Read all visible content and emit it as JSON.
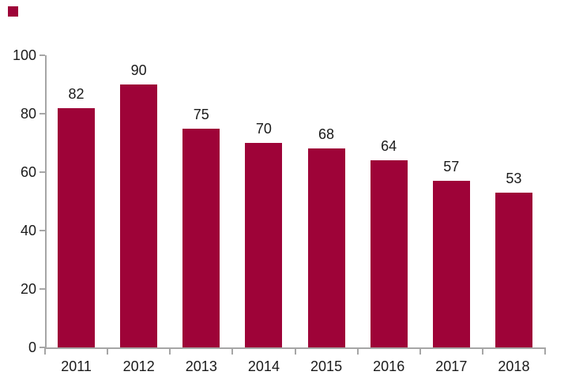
{
  "chart_data": {
    "type": "bar",
    "categories": [
      "2011",
      "2012",
      "2013",
      "2014",
      "2015",
      "2016",
      "2017",
      "2018"
    ],
    "values": [
      82,
      90,
      75,
      70,
      68,
      64,
      57,
      53
    ],
    "yticks": [
      0,
      20,
      40,
      60,
      80,
      100
    ],
    "ylim": [
      0,
      100
    ],
    "grid": false,
    "legend": "none",
    "data_labels": "above-bars",
    "bar_color": "#9E0338",
    "axis_color": "#A6A6A6",
    "label_color": "#1A1A1A"
  },
  "accent_marker": {
    "color": "#9E0338"
  }
}
